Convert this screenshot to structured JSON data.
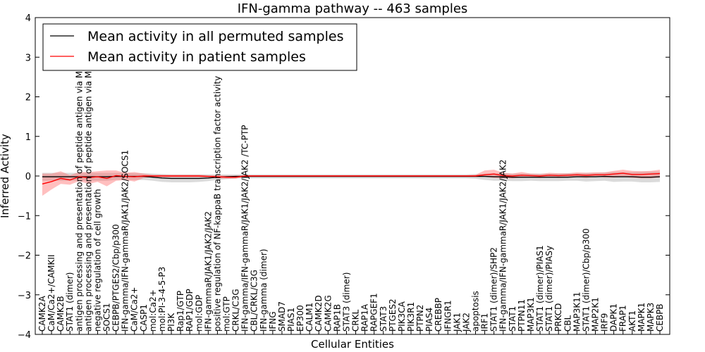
{
  "chart_data": {
    "type": "line",
    "title": "IFN-gamma pathway -- 463 samples",
    "xlabel": "Cellular Entities",
    "ylabel": "Inferred Activity",
    "ylim": [
      -4,
      4
    ],
    "y_ticks": [
      "4",
      "3",
      "2",
      "1",
      "0",
      "−1",
      "−2",
      "−3",
      "−4"
    ],
    "y_tick_values": [
      4,
      3,
      2,
      1,
      0,
      -1,
      -2,
      -3,
      -4
    ],
    "legend": {
      "location": "top-left",
      "entries": [
        {
          "label": "Mean activity in all permuted samples",
          "color": "#000000"
        },
        {
          "label": "Mean activity in patient samples",
          "color": "#ff0000"
        }
      ]
    },
    "categories": [
      "CAMK2A",
      "CaM/Ca2+/CAMKII",
      "CAMK2B",
      "STAT1 (dimer)",
      "antigen processing and presentation of peptide antigen via MHC class I",
      "antigen processing and presentation of peptide antigen via MHC class II",
      "negative regulation of cell growth",
      "SOCS1",
      "CEBPB/PTGES2/Cbp/p300",
      "IFN-gamma/IFN-gammaR/JAK1/JAK2/SOCS1",
      "CaM/Ca2+",
      "CASP1",
      "mol:Ca2+",
      "mol:PI-3-4-5-P3",
      "PI3K",
      "Rap1/GTP",
      "RAP1/GDP",
      "mol:GDP",
      "IFN-gammaR/JAK1/JAK2/JAK2",
      "positive regulation of NF-kappaB transcription factor activity",
      "mol:GTP",
      "CRKL/C3G",
      "IFN-gamma/IFN-gammaR/JAK1/JAK2/JAK2 /TC-PTP",
      "CBL/CRKL/C3G",
      "IFN-gamma (dimer)",
      "IFNG",
      "SMAD7",
      "PIAS1",
      "EP300",
      "CALM1",
      "CAMK2D",
      "CAMK2G",
      "RAP1B",
      "STAT3 (dimer)",
      "CRKL",
      "RAP1A",
      "RAPGEF1",
      "STAT3",
      "PTGES2",
      "PIK3CA",
      "PIK3R1",
      "PTPN2",
      "PIAS4",
      "CREBBP",
      "IFNGR1",
      "JAK1",
      "JAK2",
      "apoptosis",
      "IRF1",
      "STAT1 (dimer)/SHP2",
      "IFN-gamma/IFN-gammaR/JAK1/JAK2/JAK2",
      "STAT1",
      "PTPN11",
      "MAP3K1",
      "STAT1 (dimer)/PIAS1",
      "STAT1 (dimer)/PIASy",
      "PRKCD",
      "CBL",
      "MAP3K11",
      "STAT1 (dimer)/Cbp/p300",
      "MAP2K1",
      "IRF9",
      "DAPK1",
      "FRAP1",
      "AKT1",
      "MAPK1",
      "MAPK3",
      "CEBPB"
    ],
    "series": [
      {
        "name": "Mean activity in all permuted samples",
        "color": "#000000",
        "values": [
          -0.02,
          -0.02,
          -0.02,
          -0.02,
          -0.02,
          -0.02,
          -0.02,
          -0.02,
          -0.01,
          -0.01,
          -0.01,
          -0.01,
          -0.03,
          -0.05,
          -0.06,
          -0.06,
          -0.06,
          -0.06,
          -0.05,
          -0.03,
          -0.02,
          -0.01,
          -0.01,
          -0.01,
          -0.01,
          -0.01,
          -0.01,
          -0.01,
          -0.01,
          -0.01,
          -0.01,
          -0.01,
          -0.01,
          -0.01,
          -0.01,
          -0.01,
          -0.01,
          -0.01,
          -0.01,
          -0.01,
          -0.01,
          -0.01,
          -0.01,
          -0.01,
          -0.01,
          -0.01,
          -0.01,
          -0.01,
          -0.01,
          -0.02,
          -0.02,
          -0.03,
          -0.03,
          -0.03,
          -0.03,
          -0.03,
          -0.03,
          -0.03,
          -0.02,
          -0.02,
          -0.02,
          -0.01,
          -0.02,
          -0.02,
          -0.02,
          -0.03,
          -0.03,
          -0.02
        ],
        "lower": [
          -0.12,
          -0.12,
          -0.12,
          -0.12,
          -0.12,
          -0.12,
          -0.12,
          -0.12,
          -0.1,
          -0.1,
          -0.1,
          -0.1,
          -0.12,
          -0.15,
          -0.16,
          -0.16,
          -0.16,
          -0.15,
          -0.13,
          -0.1,
          -0.08,
          -0.06,
          -0.06,
          -0.06,
          -0.06,
          -0.06,
          -0.06,
          -0.06,
          -0.06,
          -0.06,
          -0.06,
          -0.06,
          -0.06,
          -0.06,
          -0.06,
          -0.06,
          -0.06,
          -0.06,
          -0.06,
          -0.06,
          -0.06,
          -0.06,
          -0.06,
          -0.06,
          -0.06,
          -0.06,
          -0.06,
          -0.07,
          -0.1,
          -0.12,
          -0.12,
          -0.13,
          -0.13,
          -0.12,
          -0.13,
          -0.13,
          -0.13,
          -0.12,
          -0.12,
          -0.14,
          -0.13,
          -0.12,
          -0.15,
          -0.14,
          -0.14,
          -0.16,
          -0.16,
          -0.15
        ],
        "upper": [
          0.08,
          0.08,
          0.08,
          0.08,
          0.08,
          0.08,
          0.08,
          0.08,
          0.08,
          0.08,
          0.07,
          0.07,
          0.06,
          0.05,
          0.04,
          0.04,
          0.04,
          0.04,
          0.04,
          0.04,
          0.04,
          0.04,
          0.04,
          0.04,
          0.04,
          0.04,
          0.04,
          0.04,
          0.04,
          0.04,
          0.04,
          0.04,
          0.04,
          0.04,
          0.04,
          0.04,
          0.04,
          0.04,
          0.04,
          0.04,
          0.04,
          0.04,
          0.04,
          0.04,
          0.04,
          0.04,
          0.04,
          0.05,
          0.06,
          0.07,
          0.07,
          0.06,
          0.06,
          0.06,
          0.06,
          0.06,
          0.06,
          0.07,
          0.07,
          0.08,
          0.08,
          0.09,
          0.1,
          0.1,
          0.1,
          0.11,
          0.11,
          0.11
        ]
      },
      {
        "name": "Mean activity in patient samples",
        "color": "#ff0000",
        "values": [
          -0.2,
          -0.14,
          -0.06,
          -0.1,
          -0.02,
          -0.04,
          -0.02,
          -0.06,
          0.01,
          -0.01,
          -0.02,
          0.0,
          0.0,
          0.0,
          0.0,
          0.0,
          0.0,
          0.0,
          -0.01,
          -0.02,
          -0.03,
          -0.03,
          0.0,
          0.0,
          0.0,
          0.0,
          0.0,
          0.0,
          0.0,
          0.0,
          0.0,
          0.0,
          0.0,
          0.0,
          0.0,
          0.0,
          0.0,
          0.0,
          0.0,
          0.0,
          0.0,
          0.0,
          0.0,
          0.0,
          0.0,
          0.0,
          0.0,
          0.0,
          0.03,
          0.05,
          0.01,
          0.0,
          0.02,
          0.01,
          0.0,
          0.02,
          0.01,
          0.02,
          0.03,
          0.02,
          0.03,
          0.03,
          0.05,
          0.07,
          0.04,
          0.04,
          0.05,
          0.06
        ],
        "lower": [
          -0.5,
          -0.34,
          -0.2,
          -0.22,
          -0.13,
          -0.2,
          -0.15,
          -0.26,
          -0.12,
          -0.1,
          -0.14,
          -0.05,
          -0.03,
          -0.03,
          -0.03,
          -0.03,
          -0.03,
          -0.03,
          -0.04,
          -0.06,
          -0.07,
          -0.07,
          -0.02,
          -0.02,
          -0.02,
          -0.02,
          -0.02,
          -0.02,
          -0.02,
          -0.02,
          -0.02,
          -0.02,
          -0.02,
          -0.02,
          -0.02,
          -0.02,
          -0.02,
          -0.02,
          -0.02,
          -0.02,
          -0.02,
          -0.02,
          -0.02,
          -0.02,
          -0.02,
          -0.02,
          -0.02,
          -0.02,
          -0.02,
          -0.05,
          -0.06,
          -0.06,
          -0.04,
          -0.04,
          -0.05,
          -0.03,
          -0.05,
          -0.03,
          -0.02,
          -0.05,
          -0.01,
          -0.04,
          -0.04,
          -0.02,
          -0.05,
          -0.06,
          -0.06,
          -0.04
        ],
        "upper": [
          0.06,
          0.06,
          0.12,
          0.02,
          0.1,
          0.1,
          0.12,
          0.14,
          0.14,
          0.08,
          0.1,
          0.06,
          0.03,
          0.03,
          0.03,
          0.03,
          0.03,
          0.03,
          0.02,
          0.02,
          0.01,
          0.01,
          0.02,
          0.02,
          0.02,
          0.02,
          0.02,
          0.02,
          0.02,
          0.02,
          0.02,
          0.02,
          0.02,
          0.02,
          0.02,
          0.02,
          0.02,
          0.02,
          0.02,
          0.02,
          0.02,
          0.02,
          0.02,
          0.02,
          0.02,
          0.02,
          0.02,
          0.03,
          0.14,
          0.16,
          0.08,
          0.06,
          0.1,
          0.06,
          0.05,
          0.08,
          0.07,
          0.07,
          0.09,
          0.08,
          0.09,
          0.09,
          0.13,
          0.16,
          0.13,
          0.12,
          0.13,
          0.16
        ]
      }
    ]
  }
}
